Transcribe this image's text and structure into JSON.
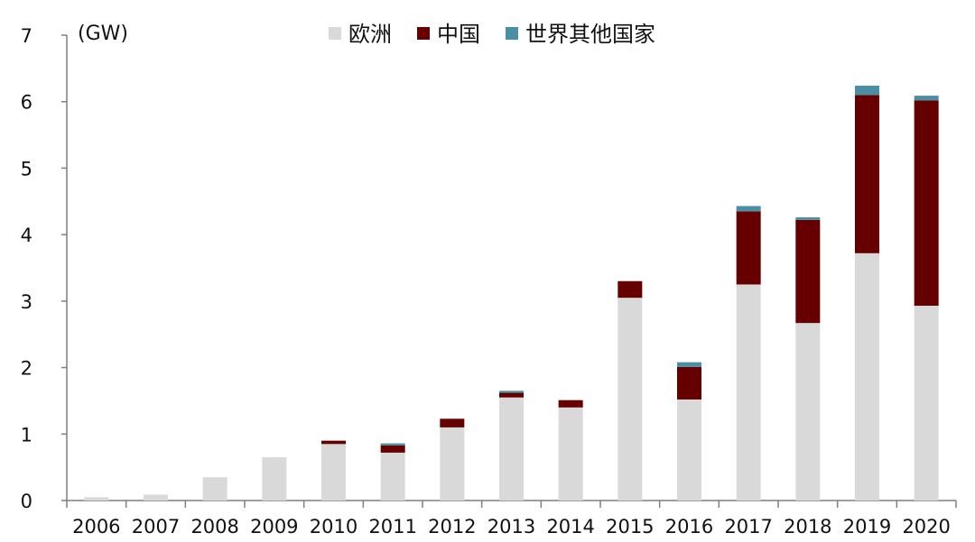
{
  "chart_data": {
    "type": "bar",
    "stacked": true,
    "unit_label": "(GW)",
    "categories": [
      "2006",
      "2007",
      "2008",
      "2009",
      "2010",
      "2011",
      "2012",
      "2013",
      "2014",
      "2015",
      "2016",
      "2017",
      "2018",
      "2019",
      "2020"
    ],
    "series": [
      {
        "name": "欧洲",
        "color": "#d9d9d9",
        "values": [
          0.05,
          0.09,
          0.35,
          0.65,
          0.85,
          0.72,
          1.1,
          1.55,
          1.4,
          3.05,
          1.52,
          3.25,
          2.67,
          3.72,
          2.93
        ]
      },
      {
        "name": "中国",
        "color": "#660000",
        "values": [
          0,
          0,
          0,
          0,
          0.05,
          0.11,
          0.13,
          0.07,
          0.11,
          0.25,
          0.49,
          1.1,
          1.55,
          2.38,
          3.09
        ]
      },
      {
        "name": "世界其他国家",
        "color": "#4a8fa3",
        "values": [
          0,
          0,
          0,
          0,
          0,
          0.03,
          0,
          0.03,
          0,
          0,
          0.07,
          0.08,
          0.04,
          0.14,
          0.07
        ]
      }
    ],
    "ylim": [
      0,
      7
    ],
    "yticks": [
      0,
      1,
      2,
      3,
      4,
      5,
      6,
      7
    ],
    "legend_position": "top",
    "grid": false
  }
}
